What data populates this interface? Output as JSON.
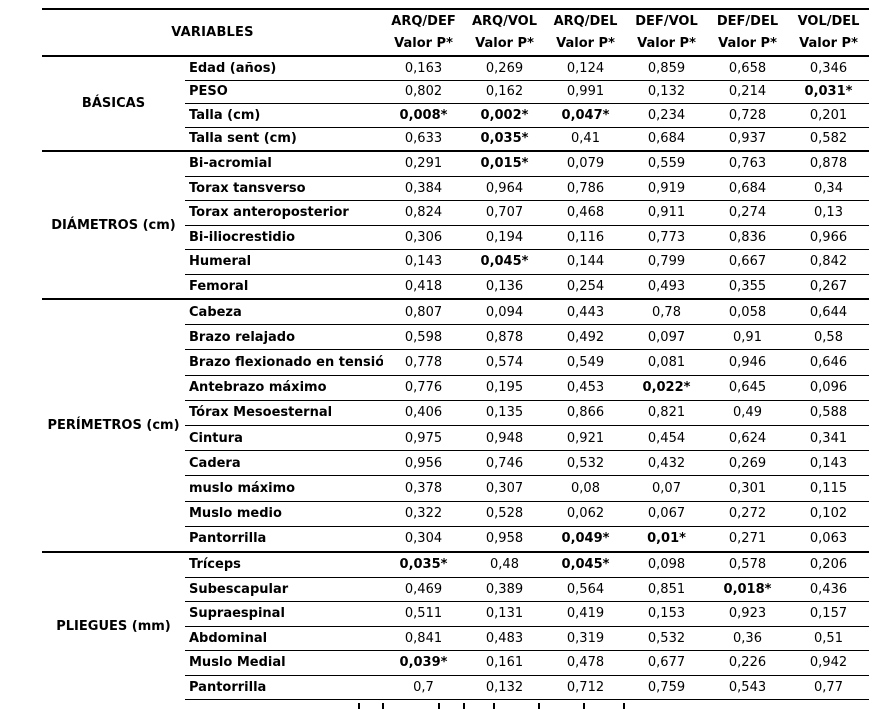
{
  "table": {
    "variables_label": "VARIABLES",
    "value_subheader": "Valor P*",
    "columns": [
      "ARQ/DEF",
      "ARQ/VOL",
      "ARQ/DEL",
      "DEF/VOL",
      "DEF/DEL",
      "VOL/DEL"
    ],
    "groups": [
      {
        "name": "BÁSICAS",
        "rows": [
          {
            "label": "Edad (años)",
            "values": [
              "0,163",
              "0,269",
              "0,124",
              "0,859",
              "0,658",
              "0,346"
            ]
          },
          {
            "label": "PESO",
            "values": [
              "0,802",
              "0,162",
              "0,991",
              "0,132",
              "0,214",
              "0,031*"
            ]
          },
          {
            "label": "Talla (cm)",
            "values": [
              "0,008*",
              "0,002*",
              "0,047*",
              "0,234",
              "0,728",
              "0,201"
            ]
          },
          {
            "label": "Talla sent (cm)",
            "values": [
              "0,633",
              "0,035*",
              "0,41",
              "0,684",
              "0,937",
              "0,582"
            ]
          }
        ]
      },
      {
        "name": "DIÁMETROS (cm)",
        "rows": [
          {
            "label": "Bi-acromial",
            "values": [
              "0,291",
              "0,015*",
              "0,079",
              "0,559",
              "0,763",
              "0,878"
            ]
          },
          {
            "label": "Torax tansverso",
            "values": [
              "0,384",
              "0,964",
              "0,786",
              "0,919",
              "0,684",
              "0,34"
            ]
          },
          {
            "label": "Torax anteroposterior",
            "values": [
              "0,824",
              "0,707",
              "0,468",
              "0,911",
              "0,274",
              "0,13"
            ]
          },
          {
            "label": "Bi-iliocrestidio",
            "values": [
              "0,306",
              "0,194",
              "0,116",
              "0,773",
              "0,836",
              "0,966"
            ]
          },
          {
            "label": "Humeral",
            "values": [
              "0,143",
              "0,045*",
              "0,144",
              "0,799",
              "0,667",
              "0,842"
            ]
          },
          {
            "label": "Femoral",
            "values": [
              "0,418",
              "0,136",
              "0,254",
              "0,493",
              "0,355",
              "0,267"
            ]
          }
        ]
      },
      {
        "name": "PERÍMETROS (cm)",
        "rows": [
          {
            "label": "Cabeza",
            "values": [
              "0,807",
              "0,094",
              "0,443",
              "0,78",
              "0,058",
              "0,644"
            ]
          },
          {
            "label": "Brazo relajado",
            "values": [
              "0,598",
              "0,878",
              "0,492",
              "0,097",
              "0,91",
              "0,58"
            ]
          },
          {
            "label": "Brazo flexionado en tensión",
            "values": [
              "0,778",
              "0,574",
              "0,549",
              "0,081",
              "0,946",
              "0,646"
            ]
          },
          {
            "label": "Antebrazo máximo",
            "values": [
              "0,776",
              "0,195",
              "0,453",
              "0,022*",
              "0,645",
              "0,096"
            ]
          },
          {
            "label": "Tórax Mesoesternal",
            "values": [
              "0,406",
              "0,135",
              "0,866",
              "0,821",
              "0,49",
              "0,588"
            ]
          },
          {
            "label": "Cintura",
            "values": [
              "0,975",
              "0,948",
              "0,921",
              "0,454",
              "0,624",
              "0,341"
            ]
          },
          {
            "label": "Cadera",
            "values": [
              "0,956",
              "0,746",
              "0,532",
              "0,432",
              "0,269",
              "0,143"
            ]
          },
          {
            "label": "muslo máximo",
            "values": [
              "0,378",
              "0,307",
              "0,08",
              "0,07",
              "0,301",
              "0,115"
            ]
          },
          {
            "label": "Muslo medio",
            "values": [
              "0,322",
              "0,528",
              "0,062",
              "0,067",
              "0,272",
              "0,102"
            ]
          },
          {
            "label": "Pantorrilla",
            "values": [
              "0,304",
              "0,958",
              "0,049*",
              "0,01*",
              "0,271",
              "0,063"
            ]
          }
        ]
      },
      {
        "name": "PLIEGUES (mm)",
        "rows": [
          {
            "label": "Tríceps",
            "values": [
              "0,035*",
              "0,48",
              "0,045*",
              "0,098",
              "0,578",
              "0,206"
            ]
          },
          {
            "label": "Subescapular",
            "values": [
              "0,469",
              "0,389",
              "0,564",
              "0,851",
              "0,018*",
              "0,436"
            ]
          },
          {
            "label": "Supraespinal",
            "values": [
              "0,511",
              "0,131",
              "0,419",
              "0,153",
              "0,923",
              "0,157"
            ]
          },
          {
            "label": "Abdominal",
            "values": [
              "0,841",
              "0,483",
              "0,319",
              "0,532",
              "0,36",
              "0,51"
            ]
          },
          {
            "label": "Muslo Medial",
            "values": [
              "0,039*",
              "0,161",
              "0,478",
              "0,677",
              "0,226",
              "0,942"
            ]
          },
          {
            "label": "Pantorrilla",
            "values": [
              "0,7",
              "0,132",
              "0,712",
              "0,759",
              "0,543",
              "0,77"
            ]
          }
        ]
      }
    ]
  },
  "colors": {
    "text": "#000000",
    "line": "#000000",
    "background": "#ffffff"
  }
}
